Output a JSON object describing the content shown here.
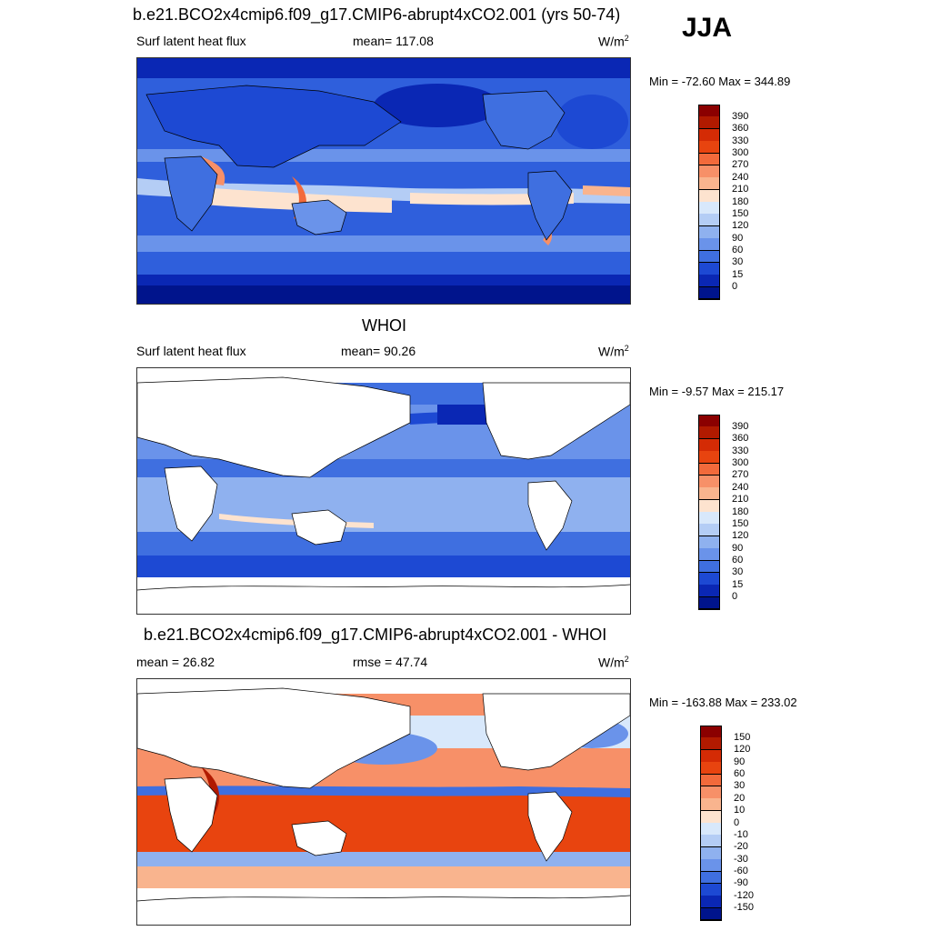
{
  "header": {
    "season": "JJA"
  },
  "panels": [
    {
      "title": "b.e21.BCO2x4cmip6.f09_g17.CMIP6-abrupt4xCO2.001 (yrs 50-74)",
      "left_label": "Surf latent heat flux",
      "center_label": "mean= 117.08",
      "units": "W/m",
      "units_sup": "2",
      "minmax": "Min = -72.60 Max = 344.89",
      "colorbar": {
        "ticks": [
          "390",
          "360",
          "330",
          "300",
          "270",
          "240",
          "210",
          "180",
          "150",
          "120",
          "90",
          "60",
          "30",
          "15",
          "0"
        ],
        "colors": [
          "#8b0000",
          "#b11a00",
          "#d42b05",
          "#e8440f",
          "#f26a3b",
          "#f79068",
          "#f9b48e",
          "#fde3cf",
          "#d8e8fb",
          "#b4cdf5",
          "#8fb1ef",
          "#6a93ea",
          "#3f6fe0",
          "#1d49d3",
          "#0a27b4",
          "#00148c"
        ]
      }
    },
    {
      "title": "WHOI",
      "left_label": "Surf latent heat flux",
      "center_label": "mean=  90.26",
      "units": "W/m",
      "units_sup": "2",
      "minmax": "Min =  -9.57 Max = 215.17",
      "colorbar": {
        "ticks": [
          "390",
          "360",
          "330",
          "300",
          "270",
          "240",
          "210",
          "180",
          "150",
          "120",
          "90",
          "60",
          "30",
          "15",
          "0"
        ],
        "colors": [
          "#8b0000",
          "#b11a00",
          "#d42b05",
          "#e8440f",
          "#f26a3b",
          "#f79068",
          "#f9b48e",
          "#fde3cf",
          "#d8e8fb",
          "#b4cdf5",
          "#8fb1ef",
          "#6a93ea",
          "#3f6fe0",
          "#1d49d3",
          "#0a27b4",
          "#00148c"
        ]
      }
    },
    {
      "title": "b.e21.BCO2x4cmip6.f09_g17.CMIP6-abrupt4xCO2.001 - WHOI",
      "left_label": "mean =  26.82",
      "center_label": "rmse =  47.74",
      "units": "W/m",
      "units_sup": "2",
      "minmax": "Min = -163.88 Max = 233.02",
      "colorbar": {
        "ticks": [
          "150",
          "120",
          "90",
          "60",
          "30",
          "20",
          "10",
          "0",
          "-10",
          "-20",
          "-30",
          "-60",
          "-90",
          "-120",
          "-150"
        ],
        "colors": [
          "#8b0000",
          "#b11a00",
          "#d42b05",
          "#e8440f",
          "#f26a3b",
          "#f79068",
          "#f9b48e",
          "#fde3cf",
          "#d8e8fb",
          "#b4cdf5",
          "#8fb1ef",
          "#6a93ea",
          "#3f6fe0",
          "#1d49d3",
          "#0a27b4",
          "#00148c"
        ]
      }
    }
  ]
}
